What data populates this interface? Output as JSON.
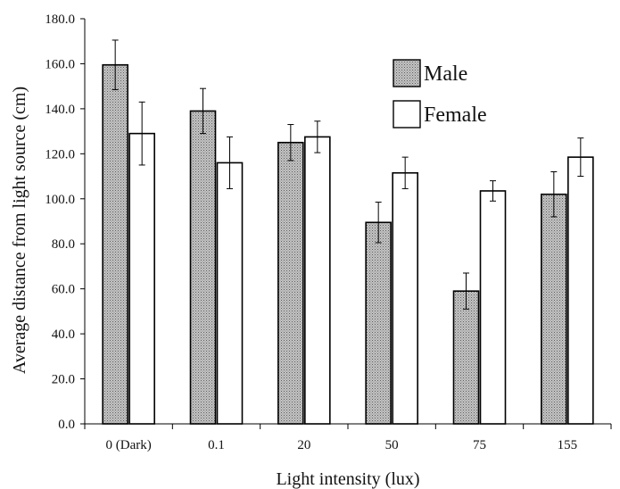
{
  "chart_data": {
    "type": "bar",
    "title": "",
    "xlabel": "Light intensity (lux)",
    "ylabel": "Average distance from light source (cm)",
    "categories": [
      "0 (Dark)",
      "0.1",
      "20",
      "50",
      "75",
      "155"
    ],
    "ylim": [
      0,
      180
    ],
    "yticks": [
      "0.0",
      "20.0",
      "40.0",
      "60.0",
      "80.0",
      "100.0",
      "120.0",
      "140.0",
      "160.0",
      "180.0"
    ],
    "grid": false,
    "legend_position": "top-right",
    "series": [
      {
        "name": "Male",
        "fill": "#b3b3b3",
        "pattern": "stipple",
        "values": [
          159.5,
          139.0,
          125.0,
          89.5,
          59.0,
          102.0
        ],
        "errors": [
          11.0,
          10.0,
          8.0,
          9.0,
          8.0,
          10.0
        ]
      },
      {
        "name": "Female",
        "fill": "#ffffff",
        "pattern": "none",
        "values": [
          129.0,
          116.0,
          127.5,
          111.5,
          103.5,
          118.5
        ],
        "errors": [
          14.0,
          11.5,
          7.0,
          7.0,
          4.5,
          8.5
        ]
      }
    ]
  }
}
